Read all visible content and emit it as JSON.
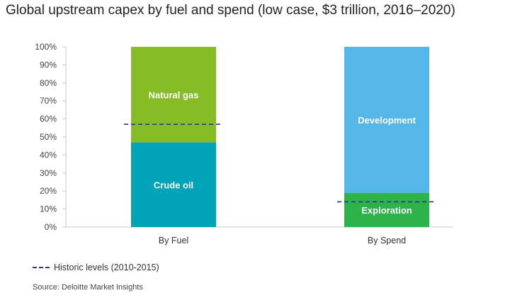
{
  "title": "Global upstream capex by fuel and spend (low case, $3 trillion, 2016–2020)",
  "legend": {
    "historic_label": "Historic levels (2010-2015)"
  },
  "source": "Source: Deloitte Market Insights",
  "chart_data": {
    "type": "bar",
    "stacked": true,
    "title": "Global upstream capex by fuel and spend (low case, $3 trillion, 2016–2020)",
    "categories": [
      "By Fuel",
      "By Spend"
    ],
    "ylim": [
      0,
      100
    ],
    "yticks": [
      "0%",
      "10%",
      "20%",
      "30%",
      "40%",
      "50%",
      "60%",
      "70%",
      "80%",
      "90%",
      "100%"
    ],
    "grid": false,
    "segments": [
      [
        {
          "name": "Crude oil",
          "value": 47,
          "color": "#00a3b8"
        },
        {
          "name": "Natural gas",
          "value": 53,
          "color": "#86bc25"
        }
      ],
      [
        {
          "name": "Exploration",
          "value": 19,
          "color": "#2db34a"
        },
        {
          "name": "Development",
          "value": 81,
          "color": "#55b6e8"
        }
      ]
    ],
    "historic_levels": [
      57,
      14
    ],
    "historic_label": "Historic levels (2010-2015)",
    "legend_position": "bottom-left"
  }
}
